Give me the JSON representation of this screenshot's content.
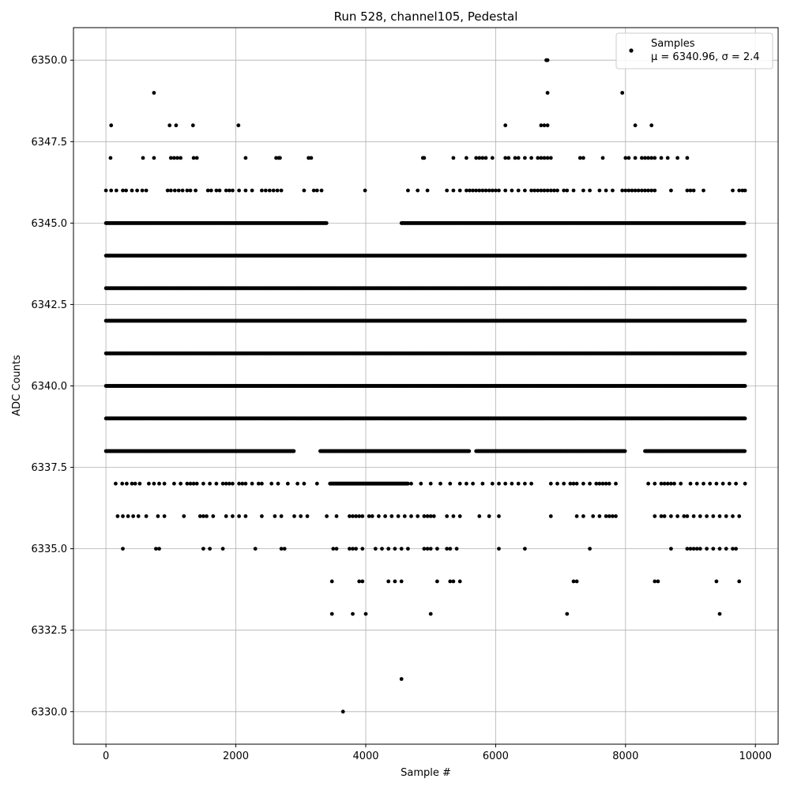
{
  "chart_data": {
    "type": "scatter",
    "title": "Run 528, channel105, Pedestal",
    "xlabel": "Sample #",
    "ylabel": "ADC Counts",
    "xlim": [
      -500,
      10350
    ],
    "ylim": [
      6329,
      6351
    ],
    "x_ticks": [
      0,
      2000,
      4000,
      6000,
      8000,
      10000
    ],
    "x_tick_labels": [
      "0",
      "2000",
      "4000",
      "6000",
      "8000",
      "10000"
    ],
    "y_ticks": [
      6330.0,
      6332.5,
      6335.0,
      6337.5,
      6340.0,
      6342.5,
      6345.0,
      6347.5,
      6350.0
    ],
    "y_tick_labels": [
      "6330.0",
      "6332.5",
      "6335.0",
      "6337.5",
      "6340.0",
      "6342.5",
      "6345.0",
      "6347.5",
      "6350.0"
    ],
    "grid": true,
    "legend_position": "top-right",
    "series": [
      {
        "name": "Samples",
        "color": "#000000",
        "marker": "dot",
        "stats_label": "μ = 6340.96, σ = 2.4",
        "sample_range": [
          0,
          9840
        ],
        "mean": 6340.96,
        "sigma": 2.4,
        "dense_levels": [
          {
            "y": 6339,
            "ranges": [
              [
                0,
                9840
              ]
            ]
          },
          {
            "y": 6340,
            "ranges": [
              [
                0,
                9840
              ]
            ]
          },
          {
            "y": 6341,
            "ranges": [
              [
                0,
                9840
              ]
            ]
          },
          {
            "y": 6342,
            "ranges": [
              [
                0,
                9840
              ]
            ]
          },
          {
            "y": 6343,
            "ranges": [
              [
                0,
                9840
              ]
            ]
          },
          {
            "y": 6344,
            "ranges": [
              [
                0,
                9840
              ]
            ]
          },
          {
            "y": 6345,
            "ranges": [
              [
                0,
                3400
              ],
              [
                4550,
                9840
              ]
            ]
          },
          {
            "y": 6338,
            "ranges": [
              [
                0,
                2900
              ],
              [
                3300,
                5600
              ],
              [
                5700,
                8000
              ],
              [
                8300,
                9840
              ]
            ]
          },
          {
            "y": 6337,
            "ranges": [
              [
                3450,
                4650
              ]
            ]
          }
        ],
        "sparse_levels": [
          {
            "y": 6346,
            "x": [
              0,
              80,
              160,
              260,
              310,
              400,
              480,
              560,
              620,
              950,
              1000,
              1060,
              1120,
              1180,
              1250,
              1300,
              1380,
              1570,
              1620,
              1700,
              1750,
              1850,
              1900,
              1950,
              2050,
              2150,
              2250,
              2400,
              2460,
              2520,
              2580,
              2640,
              2700,
              3050,
              3200,
              3250,
              3320,
              3990,
              4650,
              4800,
              4950,
              5250,
              5350,
              5450,
              5550,
              5600,
              5650,
              5700,
              5750,
              5800,
              5850,
              5900,
              5950,
              6000,
              6050,
              6150,
              6250,
              6350,
              6450,
              6550,
              6600,
              6650,
              6700,
              6750,
              6800,
              6850,
              6900,
              6950,
              7050,
              7100,
              7200,
              7350,
              7450,
              7600,
              7700,
              7800,
              7950,
              8000,
              8050,
              8100,
              8150,
              8200,
              8250,
              8300,
              8350,
              8400,
              8450,
              8700,
              8950,
              9000,
              9050,
              9200,
              9650,
              9750,
              9800,
              9840
            ]
          },
          {
            "y": 6337,
            "x": [
              150,
              250,
              320,
              400,
              450,
              520,
              660,
              740,
              820,
              900,
              1050,
              1150,
              1250,
              1300,
              1350,
              1400,
              1500,
              1600,
              1700,
              1800,
              1850,
              1900,
              1950,
              2050,
              2100,
              2150,
              2250,
              2350,
              2400,
              2550,
              2650,
              2800,
              2950,
              3050,
              3250,
              4700,
              4850,
              5000,
              5150,
              5300,
              5450,
              5550,
              5650,
              5800,
              5950,
              6050,
              6150,
              6250,
              6350,
              6450,
              6550,
              6850,
              6950,
              7050,
              7150,
              7200,
              7250,
              7350,
              7450,
              7550,
              7600,
              7650,
              7700,
              7750,
              7850,
              8350,
              8450,
              8550,
              8600,
              8650,
              8700,
              8750,
              8850,
              9000,
              9100,
              9200,
              9300,
              9400,
              9500,
              9600,
              9700,
              9840
            ]
          },
          {
            "y": 6336,
            "x": [
              180,
              260,
              340,
              420,
              500,
              620,
              800,
              900,
              1200,
              1450,
              1500,
              1550,
              1650,
              1850,
              1950,
              2050,
              2150,
              2400,
              2600,
              2700,
              2900,
              3000,
              3100,
              3400,
              3550,
              3750,
              3800,
              3850,
              3900,
              3950,
              4050,
              4100,
              4200,
              4300,
              4400,
              4500,
              4600,
              4700,
              4800,
              4900,
              4950,
              5000,
              5050,
              5250,
              5350,
              5450,
              5750,
              5900,
              6050,
              6850,
              7250,
              7350,
              7500,
              7600,
              7700,
              7750,
              7800,
              7850,
              8450,
              8550,
              8600,
              8700,
              8800,
              8900,
              8950,
              9050,
              9150,
              9250,
              9350,
              9450,
              9550,
              9650,
              9750
            ]
          },
          {
            "y": 6335,
            "x": [
              260,
              770,
              820,
              1500,
              1600,
              1800,
              2300,
              2700,
              2750,
              3500,
              3550,
              3750,
              3800,
              3850,
              3950,
              4150,
              4250,
              4350,
              4450,
              4550,
              4650,
              4900,
              4950,
              5000,
              5100,
              5250,
              5300,
              5400,
              6050,
              6450,
              7450,
              8700,
              8950,
              9000,
              9050,
              9100,
              9150,
              9250,
              9350,
              9450,
              9550,
              9650,
              9700
            ]
          },
          {
            "y": 6334,
            "x": [
              3480,
              3900,
              3950,
              4350,
              4450,
              4550,
              5100,
              5300,
              5350,
              5450,
              7200,
              7250,
              8450,
              8500,
              9400,
              9750
            ]
          },
          {
            "y": 6333,
            "x": [
              3480,
              3800,
              4000,
              5000,
              7100,
              9450
            ]
          },
          {
            "y": 6331,
            "x": [
              4550
            ]
          },
          {
            "y": 6330,
            "x": [
              3650
            ]
          },
          {
            "y": 6347,
            "x": [
              70,
              570,
              740,
              1000,
              1050,
              1100,
              1150,
              1350,
              1400,
              2150,
              2620,
              2660,
              2680,
              3120,
              3160,
              4880,
              4900,
              5350,
              5550,
              5700,
              5750,
              5800,
              5850,
              5950,
              6150,
              6200,
              6300,
              6350,
              6450,
              6550,
              6650,
              6700,
              6750,
              6800,
              6850,
              7300,
              7350,
              7650,
              8000,
              8050,
              8150,
              8250,
              8300,
              8350,
              8400,
              8450,
              8550,
              8650,
              8800,
              8950
            ]
          },
          {
            "y": 6348,
            "x": [
              80,
              980,
              1080,
              1340,
              2040,
              6150,
              6700,
              6750,
              6800,
              8150,
              8400
            ]
          },
          {
            "y": 6349,
            "x": [
              740,
              6800,
              7950
            ]
          },
          {
            "y": 6350,
            "x": [
              6780,
              6800
            ]
          }
        ]
      }
    ]
  }
}
